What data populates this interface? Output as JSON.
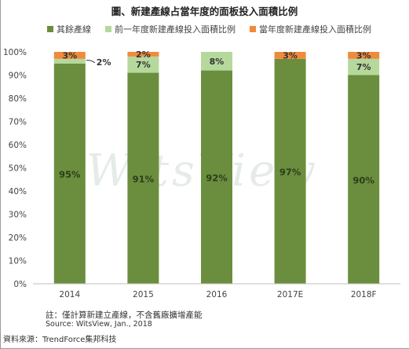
{
  "header": {
    "title": "圖、新建產線占當年度的面板投入面積比例"
  },
  "legend": [
    {
      "label": "其餘產線",
      "color": "#6b8e3e"
    },
    {
      "label": "前一年度新建產線投入面積比例",
      "color": "#b5d99c"
    },
    {
      "label": "當年度新建產線投入面積比例",
      "color": "#f08a3c"
    }
  ],
  "watermark": "WitsView",
  "notes": {
    "note": "註：僅計算新建立產線，不含舊廠擴增產能",
    "source": "Source: WitsView, Jan., 2018",
    "data_source": "資料來源：TrendForce集邦科技"
  },
  "chart_data": {
    "type": "bar",
    "stacked": true,
    "categories": [
      "2014",
      "2015",
      "2016",
      "2017E",
      "2018F"
    ],
    "series": [
      {
        "name": "其餘產線",
        "values": [
          95,
          91,
          92,
          97,
          90
        ],
        "labels": [
          "95%",
          "91%",
          "92%",
          "97%",
          "90%"
        ],
        "color": "#6b8e3e"
      },
      {
        "name": "前一年度新建產線投入面積比例",
        "values": [
          2,
          7,
          8,
          0,
          7
        ],
        "labels": [
          "2%",
          "7%",
          "8%",
          "",
          "7%"
        ],
        "color": "#b5d99c"
      },
      {
        "name": "當年度新建產線投入面積比例",
        "values": [
          3,
          2,
          0,
          3,
          3
        ],
        "labels": [
          "3%",
          "2%",
          "",
          "3%",
          "3%"
        ],
        "color": "#f08a3c"
      }
    ],
    "ylim": [
      0,
      100
    ],
    "yticks": [
      "0%",
      "10%",
      "20%",
      "30%",
      "40%",
      "50%",
      "60%",
      "70%",
      "80%",
      "90%",
      "100%"
    ],
    "grid": false,
    "legend_position": "top"
  }
}
